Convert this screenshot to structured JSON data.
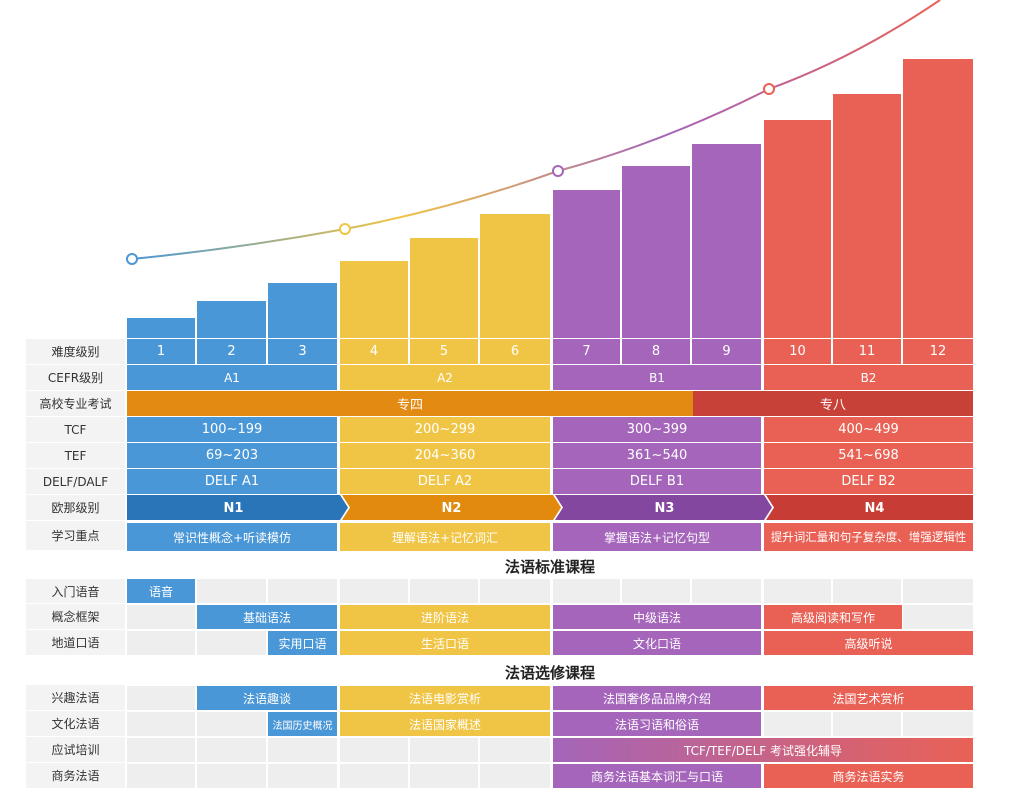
{
  "colors": {
    "blue": "#4a97d7",
    "yellow": "#f0c545",
    "purple": "#a465ba",
    "red": "#e96155",
    "orange": "#e38a12",
    "darkred": "#c84138",
    "navy": "#2a74b8",
    "darkorange": "#e18a0e",
    "darkpurple": "#8447a0",
    "crimson": "#c73c35",
    "grey": "#eeeeee",
    "label": "#f3f3f3"
  },
  "chart_data": {
    "type": "bar",
    "categories": [
      "1",
      "2",
      "3",
      "4",
      "5",
      "6",
      "7",
      "8",
      "9",
      "10",
      "11",
      "12"
    ],
    "values": [
      20,
      37,
      55,
      77,
      100,
      124,
      148,
      172,
      194,
      218,
      244,
      279
    ],
    "groups": [
      "A1",
      "A2",
      "B1",
      "B2"
    ],
    "curve_points": [
      {
        "x": "1",
        "y": 79
      },
      {
        "x": "4",
        "y": 109
      },
      {
        "x": "7",
        "y": 167
      },
      {
        "x": "10",
        "y": 249
      }
    ]
  },
  "rows": {
    "difficulty": {
      "label": "难度级别",
      "values": [
        "1",
        "2",
        "3",
        "4",
        "5",
        "6",
        "7",
        "8",
        "9",
        "10",
        "11",
        "12"
      ]
    },
    "cefr": {
      "label": "CEFR级别",
      "values": [
        "A1",
        "A2",
        "B1",
        "B2"
      ]
    },
    "univ": {
      "label": "高校专业考试",
      "values": [
        "专四",
        "专八"
      ]
    },
    "tcf": {
      "label": "TCF",
      "values": [
        "100~199",
        "200~299",
        "300~399",
        "400~499"
      ]
    },
    "tef": {
      "label": "TEF",
      "values": [
        "69~203",
        "204~360",
        "361~540",
        "541~698"
      ]
    },
    "delf": {
      "label": "DELF/DALF",
      "values": [
        "DELF A1",
        "DELF A2",
        "DELF B1",
        "DELF B2"
      ]
    },
    "eurasia": {
      "label": "欧那级别",
      "values": [
        "N1",
        "N2",
        "N3",
        "N4"
      ]
    },
    "focus": {
      "label": "学习重点",
      "values": [
        "常识性概念+听读模仿",
        "理解语法+记忆词汇",
        "掌握语法+记忆句型",
        "提升词汇量和句子复杂度、增强逻辑性"
      ]
    }
  },
  "standard": {
    "title": "法语标准课程",
    "intro": {
      "label": "入门语音",
      "items": [
        "语音"
      ]
    },
    "framework": {
      "label": "概念框架",
      "items": [
        "基础语法",
        "进阶语法",
        "中级语法",
        "高级阅读和写作"
      ]
    },
    "oral": {
      "label": "地道口语",
      "items": [
        "实用口语",
        "生活口语",
        "文化口语",
        "高级听说"
      ]
    }
  },
  "elective": {
    "title": "法语选修课程",
    "interest": {
      "label": "兴趣法语",
      "items": [
        "法语趣谈",
        "法语电影赏析",
        "法国奢侈品品牌介绍",
        "法国艺术赏析"
      ]
    },
    "culture": {
      "label": "文化法语",
      "items": [
        "法国历史概况",
        "法语国家概述",
        "法语习语和俗语"
      ]
    },
    "exam": {
      "label": "应试培训",
      "items": [
        "TCF/TEF/DELF 考试强化辅导"
      ]
    },
    "business": {
      "label": "商务法语",
      "items": [
        "商务法语基本词汇与口语",
        "商务法语实务"
      ]
    }
  }
}
